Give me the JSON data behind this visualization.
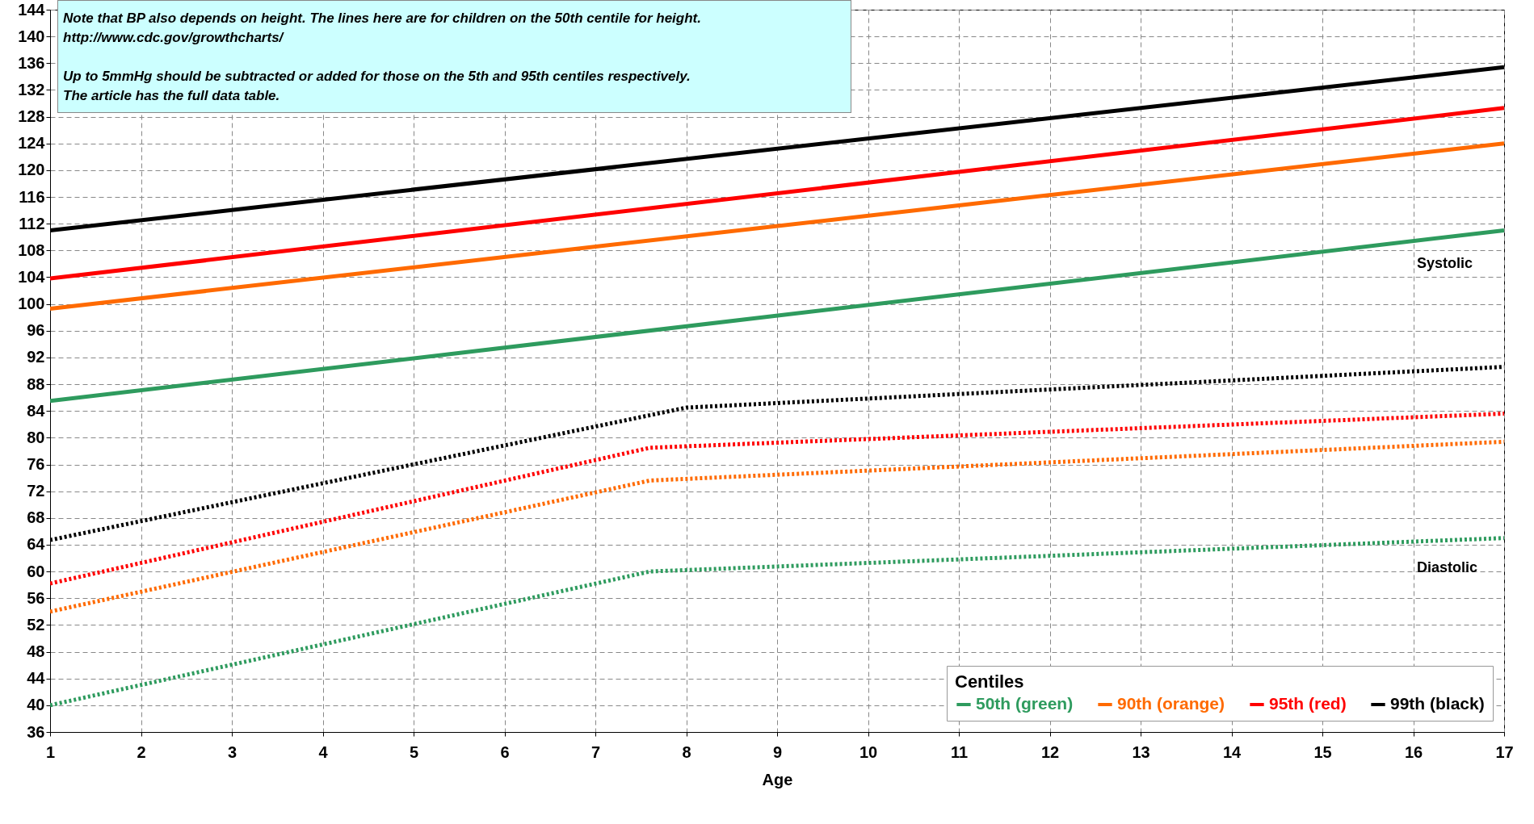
{
  "chart_data": {
    "type": "line",
    "xlabel": "Age",
    "xlim": [
      1,
      17
    ],
    "xticks": [
      1,
      2,
      3,
      4,
      5,
      6,
      7,
      8,
      9,
      10,
      11,
      12,
      13,
      14,
      15,
      16,
      17
    ],
    "ylim": [
      36,
      144
    ],
    "yticks": [
      36,
      40,
      44,
      48,
      52,
      56,
      60,
      64,
      68,
      72,
      76,
      80,
      84,
      88,
      92,
      96,
      100,
      104,
      108,
      112,
      116,
      120,
      124,
      128,
      132,
      136,
      140,
      144
    ],
    "grid": true,
    "legend": "bottom right",
    "legend_title": "Centiles",
    "marker": "none",
    "series": [
      {
        "name": "50th (green)",
        "color": "#2e9b5e",
        "line_style": "solid",
        "x": [
          1,
          17
        ],
        "values": [
          85.5,
          111
        ]
      },
      {
        "name": "90th (orange)",
        "color": "#ff6a00",
        "line_style": "solid",
        "x": [
          1,
          17
        ],
        "values": [
          99.3,
          124
        ]
      },
      {
        "name": "95th (red)",
        "color": "#ff0000",
        "line_style": "solid",
        "x": [
          1,
          17
        ],
        "values": [
          103.8,
          129.3
        ]
      },
      {
        "name": "99th (black)",
        "color": "#000000",
        "line_style": "solid",
        "x": [
          1,
          17
        ],
        "values": [
          111,
          135.4
        ]
      },
      {
        "color": "#2e9b5e",
        "line_style": "dotted",
        "x": [
          1,
          7.6,
          17
        ],
        "values": [
          40,
          60,
          65
        ]
      },
      {
        "color": "#ff6a00",
        "line_style": "dotted",
        "x": [
          1,
          7.6,
          17
        ],
        "values": [
          54,
          73.6,
          79.4
        ]
      },
      {
        "color": "#ff0000",
        "line_style": "dotted",
        "x": [
          1,
          7.6,
          17
        ],
        "values": [
          58.2,
          78.5,
          83.6
        ]
      },
      {
        "color": "#000000",
        "line_style": "dotted",
        "x": [
          1,
          8,
          17
        ],
        "values": [
          64.7,
          84.5,
          90.6
        ]
      }
    ],
    "annotations": [
      "Note  that BP also depends on height. The lines here are for children on the 50th centile for height.",
      "http://www.cdc.gov/growthcharts/",
      "Up to 5mmHg should be subtracted or added for those on the 5th and 95th centiles respectively.",
      "The article has the full data table.",
      "Systolic",
      "Diastolic"
    ]
  }
}
